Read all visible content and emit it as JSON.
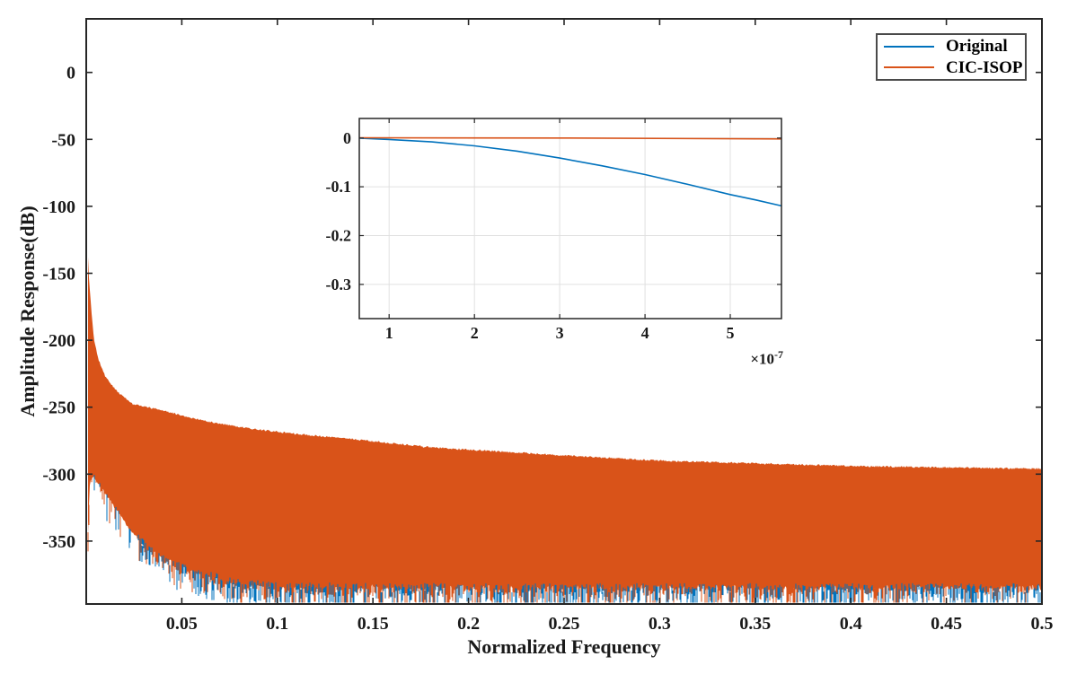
{
  "figure": {
    "background": "#FFFFFF",
    "kind": "filter magnitude response plot with inset zoom"
  },
  "colors": {
    "original": "#0072BD",
    "cic_isop": "#D95319",
    "axis": "#262626",
    "text": "#1A1A1A",
    "grid": "#E0E0E0",
    "legend_border": "#4A4A4A",
    "background": "#FFFFFF"
  },
  "legend": {
    "position": "top-right",
    "items": [
      {
        "label": "Original",
        "color_key": "original"
      },
      {
        "label": "CIC-ISOP",
        "color_key": "cic_isop"
      }
    ]
  },
  "chart_data": [
    {
      "id": "main",
      "type": "line",
      "title": "",
      "xlabel": "Normalized Frequency",
      "ylabel": "Amplitude Response(dB)",
      "xlim": [
        0,
        0.5
      ],
      "ylim": [
        -397,
        40
      ],
      "x_ticks": [
        0.05,
        0.1,
        0.15,
        0.2,
        0.25,
        0.3,
        0.35,
        0.4,
        0.45,
        0.5
      ],
      "x_tick_labels": [
        "0.05",
        "0.1",
        "0.15",
        "0.2",
        "0.25",
        "0.3",
        "0.35",
        "0.4",
        "0.45",
        "0.5"
      ],
      "y_ticks": [
        0,
        -50,
        -100,
        -150,
        -200,
        -250,
        -300,
        -350
      ],
      "y_tick_labels": [
        "0",
        "-50",
        "-100",
        "-150",
        "-200",
        "-250",
        "-300",
        "-350"
      ],
      "grid": false,
      "series": [
        {
          "name": "Original",
          "color_key": "original"
        },
        {
          "name": "CIC-ISOP",
          "color_key": "cic_isop"
        }
      ],
      "band": {
        "description": "Dense stop-band ripple lobes; both responses oscillate between the top envelope and the noise floor. CIC-ISOP (orange) is plotted over Original (blue); blue shows as spikes along the lower fringe.",
        "top_envelope_db": [
          [
            0.0005,
            -124
          ],
          [
            0.0015,
            -156
          ],
          [
            0.0028,
            -180
          ],
          [
            0.0042,
            -201
          ],
          [
            0.0066,
            -215
          ],
          [
            0.0103,
            -228
          ],
          [
            0.016,
            -238
          ],
          [
            0.0245,
            -248
          ],
          [
            0.039,
            -252
          ],
          [
            0.052,
            -257
          ],
          [
            0.068,
            -262
          ],
          [
            0.086,
            -266
          ],
          [
            0.11,
            -270
          ],
          [
            0.14,
            -274
          ],
          [
            0.18,
            -280
          ],
          [
            0.215,
            -283
          ],
          [
            0.25,
            -286
          ],
          [
            0.3,
            -290
          ],
          [
            0.35,
            -292
          ],
          [
            0.4,
            -294
          ],
          [
            0.45,
            -295
          ],
          [
            0.5,
            -296
          ]
        ],
        "bottom_solid_db": [
          [
            0.0005,
            -372
          ],
          [
            0.0012,
            -330
          ],
          [
            0.002,
            -305
          ],
          [
            0.004,
            -302
          ],
          [
            0.0136,
            -322
          ],
          [
            0.023,
            -342
          ],
          [
            0.037,
            -360
          ],
          [
            0.056,
            -373
          ],
          [
            0.078,
            -381
          ],
          [
            0.096,
            -384
          ],
          [
            0.15,
            -385
          ],
          [
            0.3,
            -385
          ],
          [
            0.5,
            -385
          ]
        ],
        "spike_floor_db": -396,
        "left_start_freq": 0.0005
      }
    },
    {
      "id": "inset",
      "type": "line",
      "title": "",
      "xlabel": "",
      "ylabel": "",
      "x_unit": 1e-07,
      "x_multiplier_base": "×10",
      "x_multiplier_exp": "-7",
      "xlim": [
        0.65,
        5.6
      ],
      "ylim": [
        -0.37,
        0.04
      ],
      "x_ticks": [
        1,
        2,
        3,
        4,
        5
      ],
      "x_tick_labels": [
        "1",
        "2",
        "3",
        "4",
        "5"
      ],
      "y_ticks": [
        0,
        -0.1,
        -0.2,
        -0.3
      ],
      "y_tick_labels": [
        "0",
        "-0.1",
        "-0.2",
        "-0.3"
      ],
      "grid": true,
      "series": [
        {
          "name": "Original",
          "color_key": "original",
          "x": [
            0.65,
            1.0,
            1.5,
            2.0,
            2.5,
            3.0,
            3.5,
            4.0,
            4.5,
            5.0,
            5.3,
            5.6
          ],
          "y": [
            -0.0005,
            -0.003,
            -0.008,
            -0.016,
            -0.027,
            -0.041,
            -0.057,
            -0.075,
            -0.095,
            -0.116,
            -0.127,
            -0.139
          ]
        },
        {
          "name": "CIC-ISOP",
          "color_key": "cic_isop",
          "x": [
            0.65,
            3.0,
            5.6
          ],
          "y": [
            0.0005,
            0.0,
            -0.002
          ]
        }
      ]
    }
  ]
}
